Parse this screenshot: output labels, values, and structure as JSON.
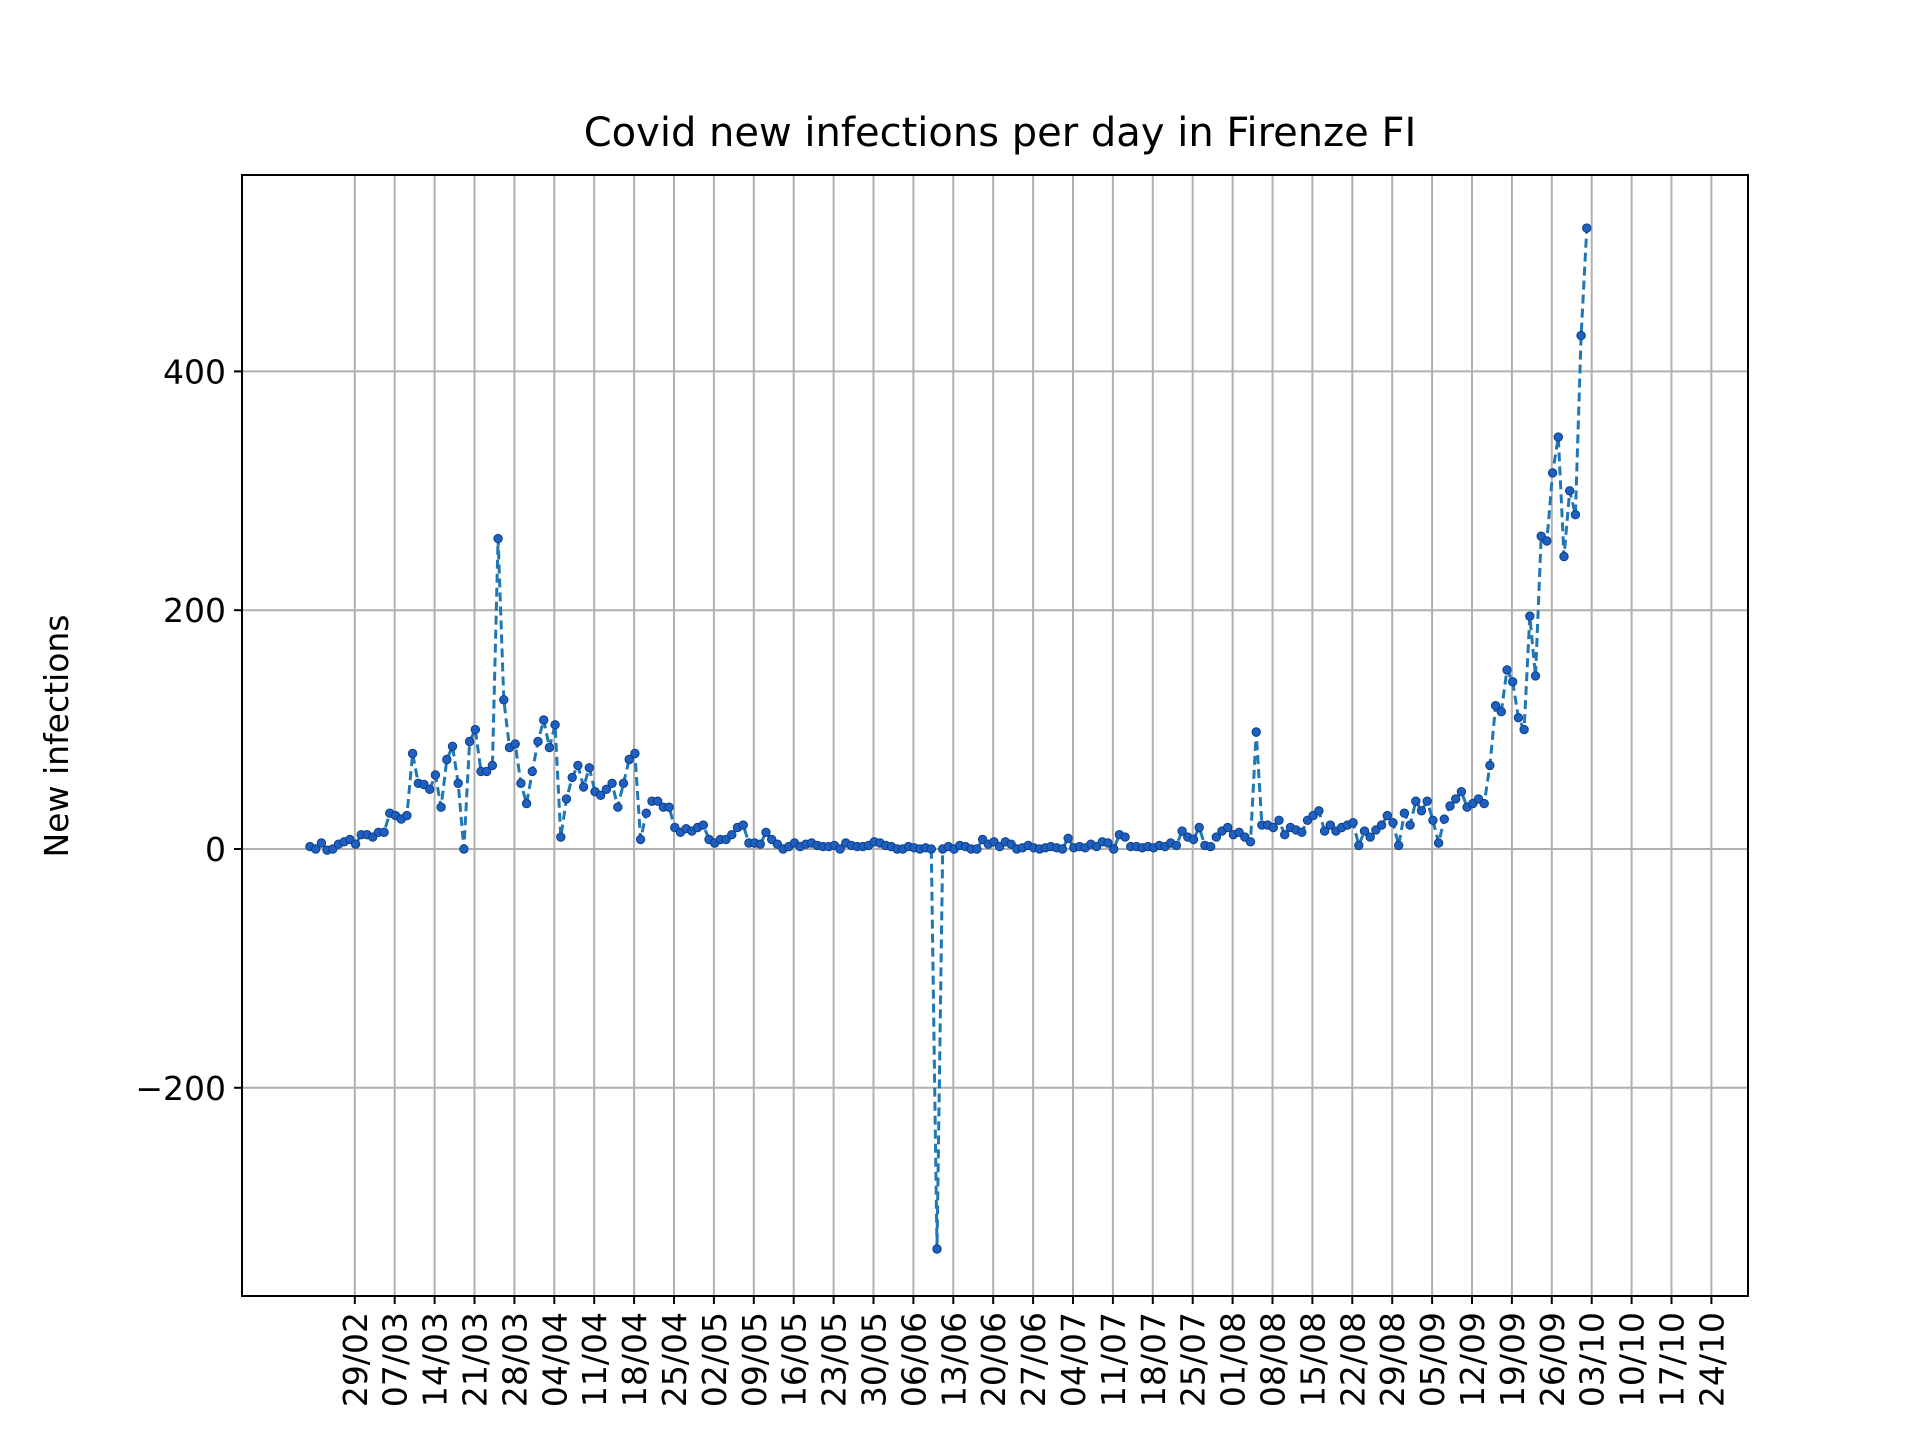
{
  "chart_data": {
    "type": "line",
    "title": "Covid new infections per day in Firenze FI",
    "xlabel": "",
    "ylabel": "New infections",
    "ylim": [
      -375,
      565
    ],
    "yticks": [
      -200,
      0,
      200,
      400
    ],
    "ytick_labels": [
      "−200",
      "0",
      "200",
      "400"
    ],
    "grid": true,
    "line_color": "#1f77b4",
    "marker_color": "#1f5fbf",
    "x_day_range": [
      0,
      240
    ],
    "xticks": [
      {
        "day": 4,
        "label": "29/02"
      },
      {
        "day": 11,
        "label": "07/03"
      },
      {
        "day": 18,
        "label": "14/03"
      },
      {
        "day": 25,
        "label": "21/03"
      },
      {
        "day": 32,
        "label": "28/03"
      },
      {
        "day": 39,
        "label": "04/04"
      },
      {
        "day": 46,
        "label": "11/04"
      },
      {
        "day": 53,
        "label": "18/04"
      },
      {
        "day": 60,
        "label": "25/04"
      },
      {
        "day": 67,
        "label": "02/05"
      },
      {
        "day": 74,
        "label": "09/05"
      },
      {
        "day": 81,
        "label": "16/05"
      },
      {
        "day": 88,
        "label": "23/05"
      },
      {
        "day": 95,
        "label": "30/05"
      },
      {
        "day": 102,
        "label": "06/06"
      },
      {
        "day": 109,
        "label": "13/06"
      },
      {
        "day": 116,
        "label": "20/06"
      },
      {
        "day": 123,
        "label": "27/06"
      },
      {
        "day": 130,
        "label": "04/07"
      },
      {
        "day": 137,
        "label": "11/07"
      },
      {
        "day": 144,
        "label": "18/07"
      },
      {
        "day": 151,
        "label": "25/07"
      },
      {
        "day": 158,
        "label": "01/08"
      },
      {
        "day": 165,
        "label": "08/08"
      },
      {
        "day": 172,
        "label": "15/08"
      },
      {
        "day": 179,
        "label": "22/08"
      },
      {
        "day": 186,
        "label": "29/08"
      },
      {
        "day": 193,
        "label": "05/09"
      },
      {
        "day": 200,
        "label": "12/09"
      },
      {
        "day": 207,
        "label": "19/09"
      },
      {
        "day": 214,
        "label": "26/09"
      },
      {
        "day": 221,
        "label": "03/10"
      },
      {
        "day": 228,
        "label": "10/10"
      },
      {
        "day": 235,
        "label": "17/10"
      },
      {
        "day": 242,
        "label": "24/10"
      }
    ],
    "series": [
      {
        "x_start_date": "25/02",
        "values": [
          2,
          0,
          5,
          -1,
          0,
          4,
          6,
          8,
          4,
          12,
          12,
          10,
          14,
          14,
          30,
          28,
          25,
          28,
          80,
          55,
          54,
          50,
          62,
          35,
          75,
          86,
          55,
          0,
          90,
          100,
          65,
          65,
          70,
          260,
          125,
          85,
          88,
          55,
          38,
          65,
          90,
          108,
          85,
          104,
          10,
          42,
          60,
          70,
          52,
          68,
          48,
          45,
          50,
          55,
          35,
          55,
          75,
          80,
          8,
          30,
          40,
          40,
          35,
          35,
          18,
          14,
          17,
          15,
          18,
          20,
          8,
          5,
          8,
          8,
          12,
          18,
          20,
          5,
          5,
          4,
          14,
          8,
          4,
          0,
          2,
          5,
          2,
          4,
          5,
          3,
          2,
          2,
          3,
          0,
          5,
          3,
          2,
          2,
          3,
          6,
          5,
          3,
          2,
          0,
          0,
          2,
          1,
          0,
          1,
          0,
          -335,
          0,
          2,
          0,
          3,
          2,
          0,
          0,
          8,
          4,
          6,
          2,
          6,
          4,
          0,
          1,
          3,
          1,
          0,
          1,
          2,
          1,
          0,
          9,
          1,
          2,
          1,
          4,
          2,
          6,
          5,
          0,
          12,
          10,
          2,
          2,
          1,
          2,
          1,
          3,
          2,
          5,
          3,
          15,
          10,
          8,
          18,
          3,
          2,
          10,
          15,
          18,
          12,
          14,
          10,
          6,
          98,
          20,
          20,
          18,
          24,
          12,
          18,
          16,
          14,
          24,
          28,
          32,
          15,
          20,
          15,
          18,
          20,
          22,
          3,
          15,
          10,
          16,
          20,
          28,
          22,
          3,
          30,
          20,
          40,
          32,
          40,
          24,
          5,
          25,
          36,
          42,
          48,
          35,
          38,
          42,
          38,
          70,
          120,
          115,
          150,
          140,
          110,
          100,
          195,
          145,
          262,
          258,
          315,
          345,
          245,
          300,
          280,
          430,
          520
        ]
      }
    ]
  }
}
